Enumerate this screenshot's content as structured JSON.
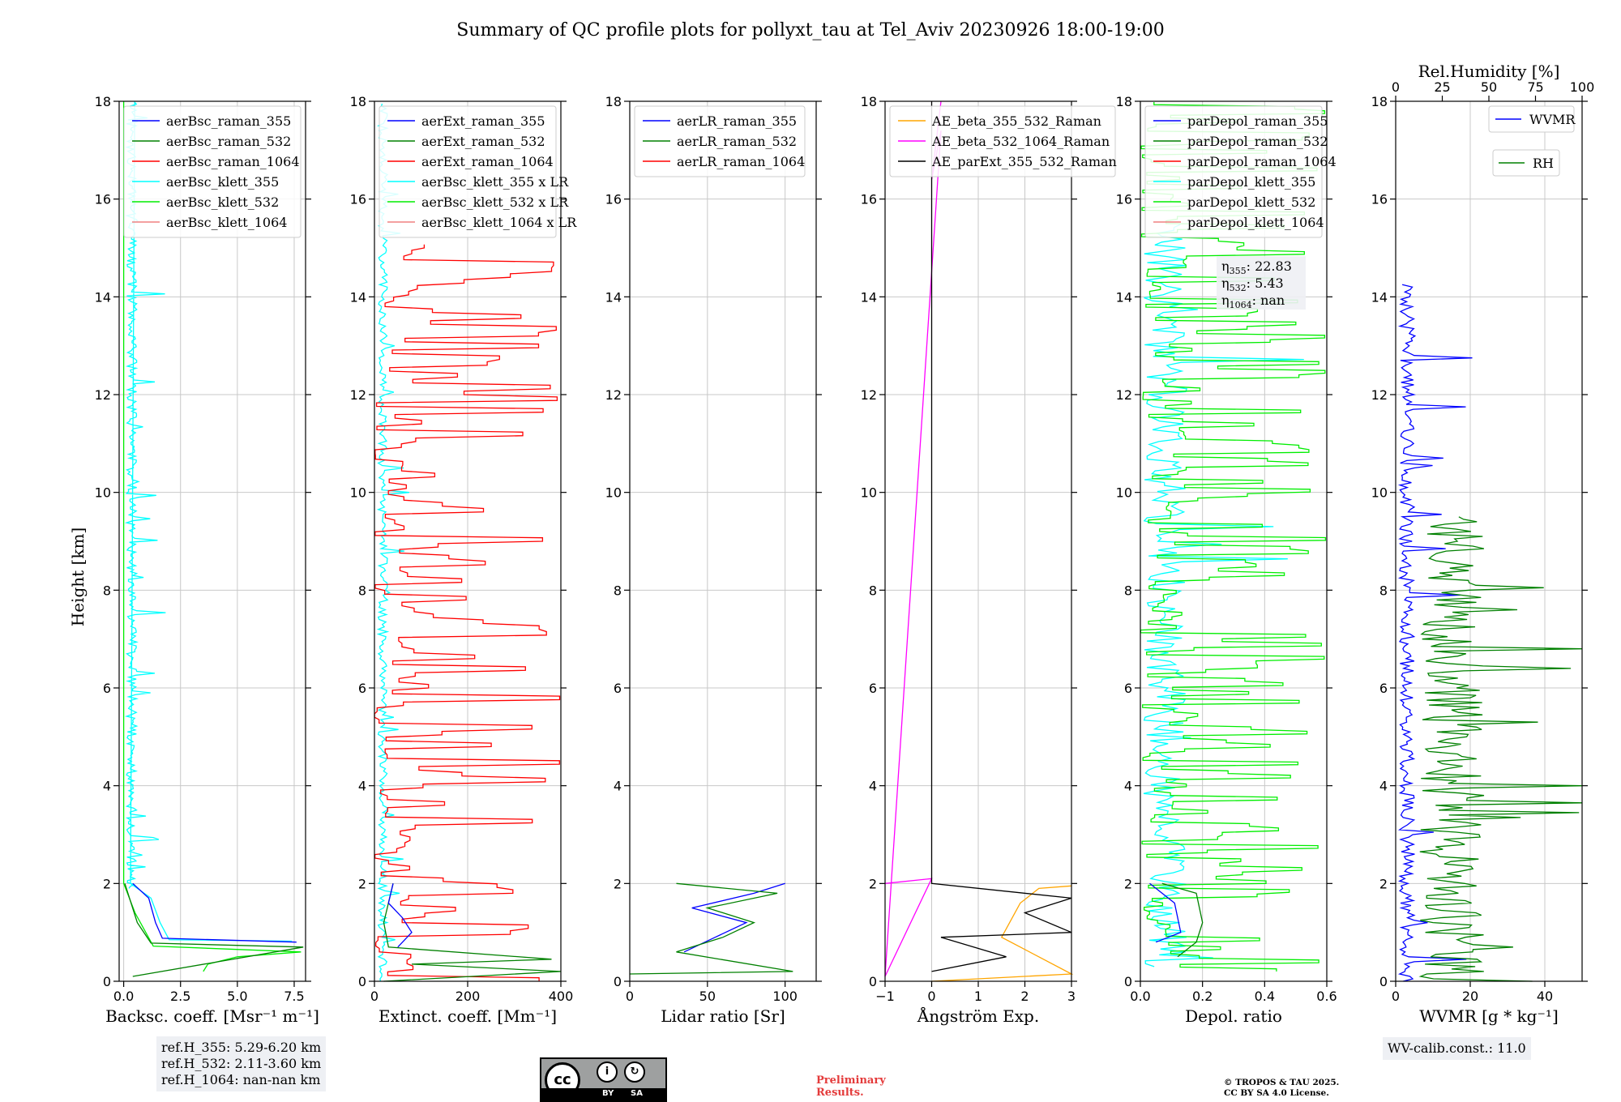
{
  "title": "Summary of QC profile plots for pollyxt_tau at Tel_Aviv 20230926 18:00-19:00",
  "ylabel": "Height [km]",
  "colors": {
    "blue": "#0000ff",
    "green": "#008000",
    "red": "#ff0000",
    "cyan": "#00ffff",
    "lime": "#00ee00",
    "salmon": "#f08080",
    "orange": "#ffa500",
    "magenta": "#ff00ff",
    "black": "#000000"
  },
  "chart_data": [
    {
      "type": "line",
      "id": "bsc",
      "xlabel": "Backsc. coeff. [Msr⁻¹ m⁻¹]",
      "xlim": [
        -0.2,
        8.0
      ],
      "ylim": [
        0,
        18
      ],
      "xticks": [
        0,
        2.5,
        5.0,
        7.5
      ],
      "xticklabels": [
        "0.0",
        "2.5",
        "5.0",
        "7.5"
      ],
      "yticks": [
        0,
        2,
        4,
        6,
        8,
        10,
        12,
        14,
        16,
        18
      ],
      "legend": [
        "aerBsc_raman_355",
        "aerBsc_raman_532",
        "aerBsc_raman_1064",
        "aerBsc_klett_355",
        "aerBsc_klett_532",
        "aerBsc_klett_1064"
      ],
      "legend_colors": [
        "blue",
        "green",
        "red",
        "cyan",
        "lime",
        "salmon"
      ],
      "series": [
        {
          "name": "aerBsc_klett_355",
          "color": "cyan",
          "profile": "bsc355"
        },
        {
          "name": "aerBsc_klett_532",
          "color": "lime",
          "profile": "bsc532k"
        },
        {
          "name": "aerBsc_raman_532",
          "color": "green",
          "profile": "bsc532r"
        },
        {
          "name": "aerBsc_raman_355",
          "color": "blue",
          "profile": "bsc355r"
        }
      ]
    },
    {
      "type": "line",
      "id": "ext",
      "xlabel": "Extinct. coeff. [Mm⁻¹]",
      "xlim": [
        0,
        400
      ],
      "ylim": [
        0,
        18
      ],
      "xticks": [
        0,
        200,
        400
      ],
      "xticklabels": [
        "0",
        "200",
        "400"
      ],
      "yticks": [
        0,
        2,
        4,
        6,
        8,
        10,
        12,
        14,
        16,
        18
      ],
      "legend": [
        "aerExt_raman_355",
        "aerExt_raman_532",
        "aerExt_raman_1064",
        "aerBsc_klett_355 x LR",
        "aerBsc_klett_532 x LR",
        "aerBsc_klett_1064 x LR"
      ],
      "legend_colors": [
        "blue",
        "green",
        "red",
        "cyan",
        "lime",
        "salmon"
      ],
      "series": [
        {
          "name": "aerBsc_klett_355 x LR",
          "color": "cyan",
          "profile": "ext355k"
        },
        {
          "name": "aerExt_raman_1064",
          "color": "red",
          "profile": "ext1064"
        },
        {
          "name": "aerExt_raman_532",
          "color": "green",
          "profile": "ext532"
        },
        {
          "name": "aerExt_raman_355",
          "color": "blue",
          "profile": "ext355"
        }
      ]
    },
    {
      "type": "line",
      "id": "lr",
      "xlabel": "Lidar ratio [Sr]",
      "xlim": [
        0,
        120
      ],
      "ylim": [
        0,
        18
      ],
      "xticks": [
        0,
        50,
        100
      ],
      "xticklabels": [
        "0",
        "50",
        "100"
      ],
      "yticks": [
        0,
        2,
        4,
        6,
        8,
        10,
        12,
        14,
        16,
        18
      ],
      "legend": [
        "aerLR_raman_355",
        "aerLR_raman_532",
        "aerLR_raman_1064"
      ],
      "legend_colors": [
        "blue",
        "green",
        "red"
      ],
      "series": [
        {
          "name": "aerLR_raman_355",
          "color": "blue",
          "profile": "lr355"
        },
        {
          "name": "aerLR_raman_532",
          "color": "green",
          "profile": "lr532"
        }
      ]
    },
    {
      "type": "line",
      "id": "ae",
      "xlabel": "Ångström Exp.",
      "xlim": [
        -1,
        3
      ],
      "ylim": [
        0,
        18
      ],
      "xticks": [
        -1,
        0,
        1,
        2,
        3
      ],
      "xticklabels": [
        "−1",
        "0",
        "1",
        "2",
        "3"
      ],
      "yticks": [
        0,
        2,
        4,
        6,
        8,
        10,
        12,
        14,
        16,
        18
      ],
      "legend": [
        "AE_beta_355_532_Raman",
        "AE_beta_532_1064_Raman",
        "AE_parExt_355_532_Raman"
      ],
      "legend_colors": [
        "orange",
        "magenta",
        "black"
      ],
      "series": [
        {
          "name": "AE_beta_532_1064_Raman",
          "color": "magenta",
          "profile": "ae532"
        },
        {
          "name": "AE_beta_355_532_Raman",
          "color": "orange",
          "profile": "ae355"
        },
        {
          "name": "AE_parExt_355_532_Raman",
          "color": "black",
          "profile": "aeext"
        }
      ]
    },
    {
      "type": "line",
      "id": "dep",
      "xlabel": "Depol. ratio",
      "xlim": [
        0,
        0.6
      ],
      "ylim": [
        0,
        18
      ],
      "xticks": [
        0,
        0.2,
        0.4,
        0.6
      ],
      "xticklabels": [
        "0.0",
        "0.2",
        "0.4",
        "0.6"
      ],
      "yticks": [
        0,
        2,
        4,
        6,
        8,
        10,
        12,
        14,
        16,
        18
      ],
      "legend": [
        "parDepol_raman_355",
        "parDepol_raman_532",
        "parDepol_raman_1064",
        "parDepol_klett_355",
        "parDepol_klett_532",
        "parDepol_klett_1064"
      ],
      "legend_colors": [
        "blue",
        "green",
        "red",
        "cyan",
        "lime",
        "salmon"
      ],
      "series": [
        {
          "name": "parDepol_klett_355",
          "color": "cyan",
          "profile": "dep355k"
        },
        {
          "name": "parDepol_klett_532",
          "color": "lime",
          "profile": "dep532k"
        },
        {
          "name": "parDepol_raman_532",
          "color": "green",
          "profile": "dep532r"
        },
        {
          "name": "parDepol_raman_355",
          "color": "blue",
          "profile": "dep355r"
        }
      ]
    },
    {
      "type": "line",
      "id": "wv",
      "xlabel": "WVMR [g * kg⁻¹]",
      "xlim": [
        0,
        50
      ],
      "ylim": [
        0,
        18
      ],
      "xticks": [
        0,
        20,
        40
      ],
      "xticklabels": [
        "0",
        "20",
        "40"
      ],
      "x2label": "Rel.Humidity [%]",
      "x2lim": [
        0,
        100
      ],
      "x2ticks": [
        0,
        25,
        50,
        75,
        100
      ],
      "x2ticklabels": [
        "0",
        "25",
        "50",
        "75",
        "100"
      ],
      "yticks": [
        0,
        2,
        4,
        6,
        8,
        10,
        12,
        14,
        16,
        18
      ],
      "legend": [
        "WVMR",
        "RH"
      ],
      "legend_colors": [
        "blue",
        "green"
      ],
      "series": [
        {
          "name": "WVMR",
          "color": "blue",
          "profile": "wvmr"
        },
        {
          "name": "RH",
          "color": "green",
          "profile": "rh",
          "axis": "x2"
        }
      ]
    }
  ],
  "eta": {
    "prefix": "η",
    "items": [
      {
        "sub": "355",
        "value": ": 22.83"
      },
      {
        "sub": "532",
        "value": ": 5.43"
      },
      {
        "sub": "1064",
        "value": ": nan"
      }
    ]
  },
  "ref_h": [
    "ref.H_355: 5.29-6.20 km",
    "ref.H_532: 2.11-3.60 km",
    "ref.H_1064: nan-nan km"
  ],
  "wv_calib": "WV-calib.const.: 11.0",
  "cc_license": {
    "by": "BY",
    "sa": "SA",
    "cc": "cc",
    "by_glyph": "i",
    "sa_glyph": "↻"
  },
  "preliminary": [
    "Preliminary",
    "Results."
  ],
  "copyright": [
    "© TROPOS & TAU 2025.",
    "CC BY SA 4.0 License."
  ]
}
